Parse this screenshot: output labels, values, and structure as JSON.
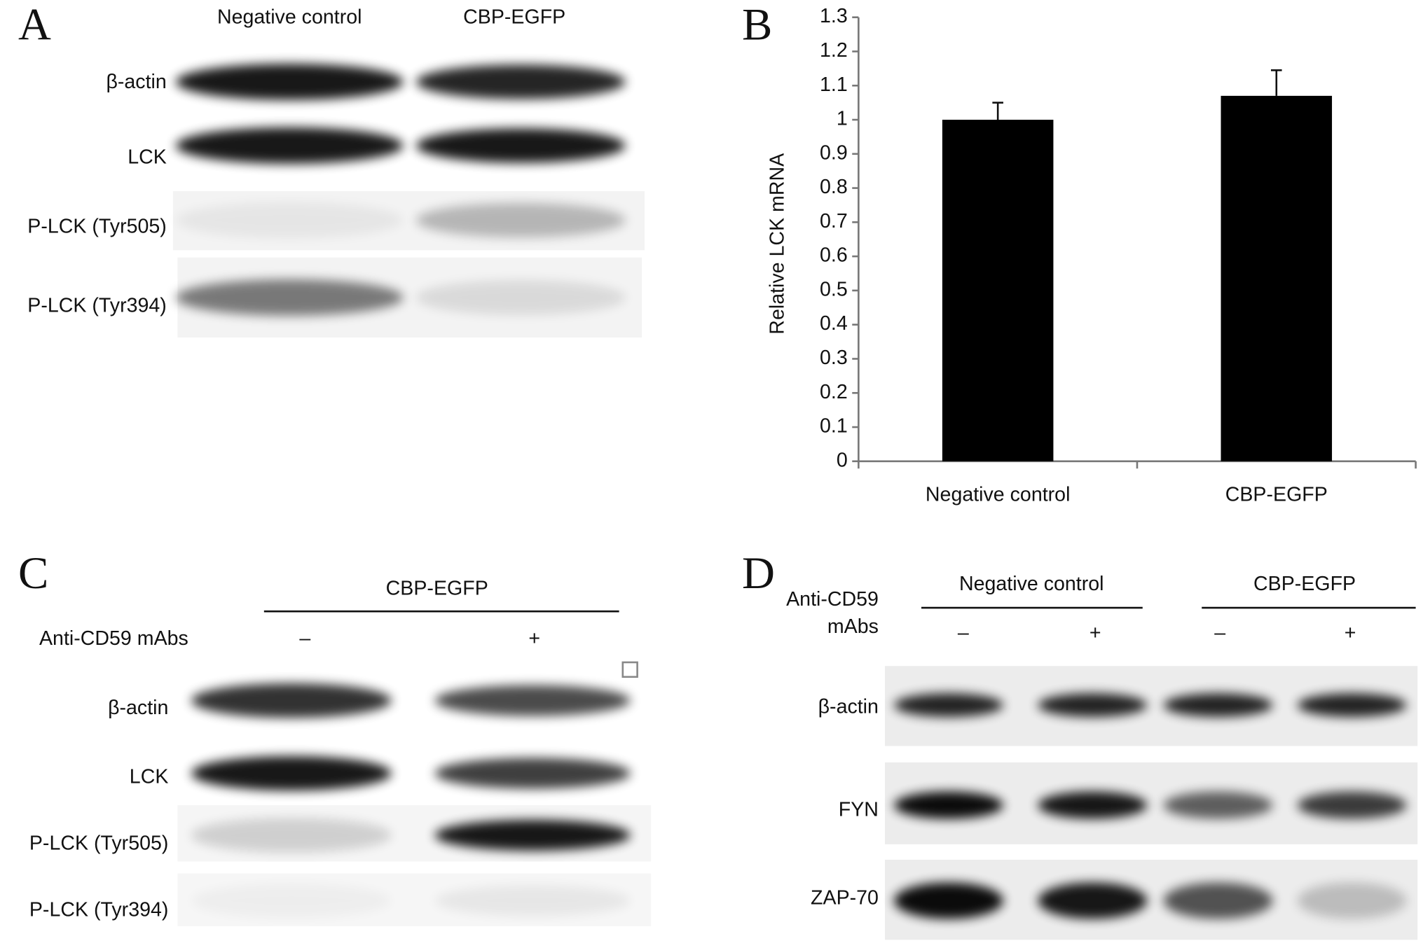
{
  "panel_a": {
    "label": "A",
    "columns": [
      "Negative control",
      "CBP-EGFP"
    ],
    "rows": [
      "β-actin",
      "LCK",
      "P-LCK (Tyr505)",
      "P-LCK (Tyr394)"
    ]
  },
  "chart_data": {
    "type": "bar",
    "panel_label": "B",
    "ylabel": "Relative LCK mRNA",
    "categories": [
      "Negative control",
      "CBP-EGFP"
    ],
    "values": [
      1.0,
      1.07
    ],
    "errors": [
      0.05,
      0.075
    ],
    "color": "#000000",
    "ylim": [
      0,
      1.3
    ],
    "yticks": [
      0,
      0.1,
      0.2,
      0.3,
      0.4,
      0.5,
      0.6,
      0.7,
      0.8,
      0.9,
      1,
      1.1,
      1.2,
      1.3
    ]
  },
  "panel_c": {
    "label": "C",
    "group": "CBP-EGFP",
    "treatment": "Anti-CD59 mAbs",
    "conditions": [
      "–",
      "+"
    ],
    "rows": [
      "β-actin",
      "LCK",
      "P-LCK (Tyr505)",
      "P-LCK (Tyr394)"
    ]
  },
  "panel_d": {
    "label": "D",
    "treatment": [
      "Anti-CD59",
      "mAbs"
    ],
    "groups": [
      "Negative control",
      "CBP-EGFP"
    ],
    "conditions": [
      "–",
      "+",
      "–",
      "+"
    ],
    "rows": [
      "β-actin",
      "FYN",
      "ZAP-70"
    ]
  }
}
